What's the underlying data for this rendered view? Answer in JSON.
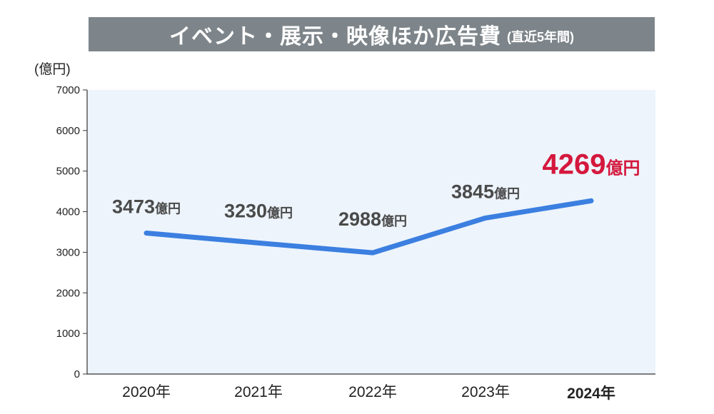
{
  "title": "イベント・展示・映像ほか広告費",
  "subtitle": "(直近5年間)",
  "colors": {
    "title_bg": "#7d858a",
    "plot_bg": "#edf4fc",
    "line": "#3b7fe0",
    "highlight": "#d4183d",
    "label": "#4a4a4a"
  },
  "chart_data": {
    "type": "line",
    "ylabel": "(億円)",
    "ylim": [
      0,
      7000
    ],
    "yticks": [
      "0",
      "1000",
      "2000",
      "3000",
      "4000",
      "5000",
      "6000",
      "7000"
    ],
    "categories": [
      "2020年",
      "2021年",
      "2022年",
      "2023年",
      "2024年"
    ],
    "series": [
      {
        "values": [
          3473,
          3230,
          2988,
          3845,
          4269
        ]
      }
    ],
    "data_labels": [
      {
        "num": "3473",
        "unit": "億円"
      },
      {
        "num": "3230",
        "unit": "億円"
      },
      {
        "num": "2988",
        "unit": "億円"
      },
      {
        "num": "3845",
        "unit": "億円"
      },
      {
        "num": "4269",
        "unit": "億円"
      }
    ],
    "highlight_index": 4,
    "grid": false,
    "legend": "none"
  }
}
